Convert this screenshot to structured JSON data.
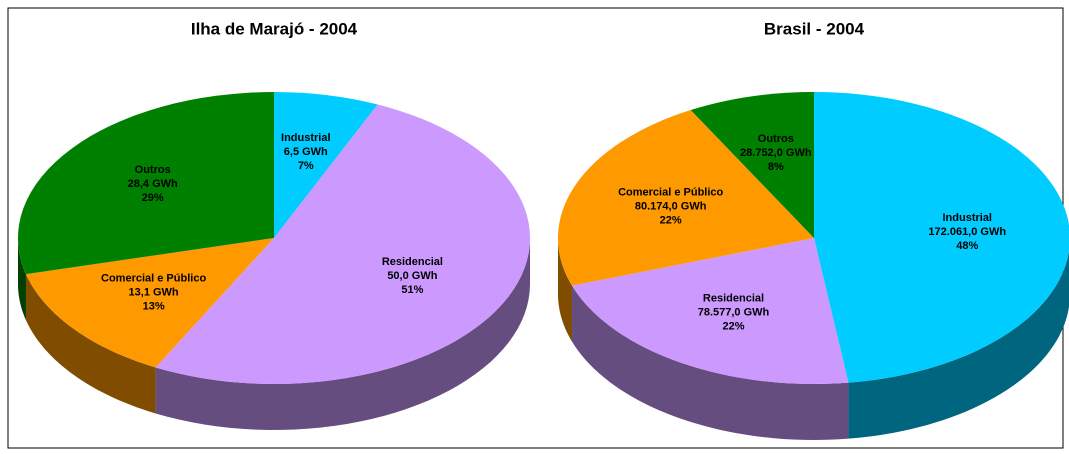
{
  "chart_data": [
    {
      "type": "pie3d",
      "title": "Ilha de Marajó - 2004",
      "categories": [
        "Industrial",
        "Residencial",
        "Comercial e Público",
        "Outros"
      ],
      "values": [
        6.5,
        50.0,
        13.1,
        28.4
      ],
      "value_labels": [
        "6,5 GWh",
        "50,0 GWh",
        "13,1 GWh",
        "28,4 GWh"
      ],
      "percents": [
        7,
        51,
        13,
        29
      ],
      "percent_labels": [
        "7%",
        "51%",
        "13%",
        "29%"
      ],
      "colors": [
        "#00ccff",
        "#cc99ff",
        "#ff9900",
        "#008000"
      ]
    },
    {
      "type": "pie3d",
      "title": "Brasil - 2004",
      "categories": [
        "Industrial",
        "Residencial",
        "Comercial e Público",
        "Outros"
      ],
      "values": [
        172061.0,
        78577.0,
        80174.0,
        28752.0
      ],
      "value_labels": [
        "172.061,0 GWh",
        "78.577,0 GWh",
        "80.174,0 GWh",
        "28.752,0 GWh"
      ],
      "percents": [
        48,
        22,
        22,
        8
      ],
      "percent_labels": [
        "48%",
        "22%",
        "22%",
        "8%"
      ],
      "colors": [
        "#00ccff",
        "#cc99ff",
        "#ff9900",
        "#008000"
      ]
    }
  ]
}
